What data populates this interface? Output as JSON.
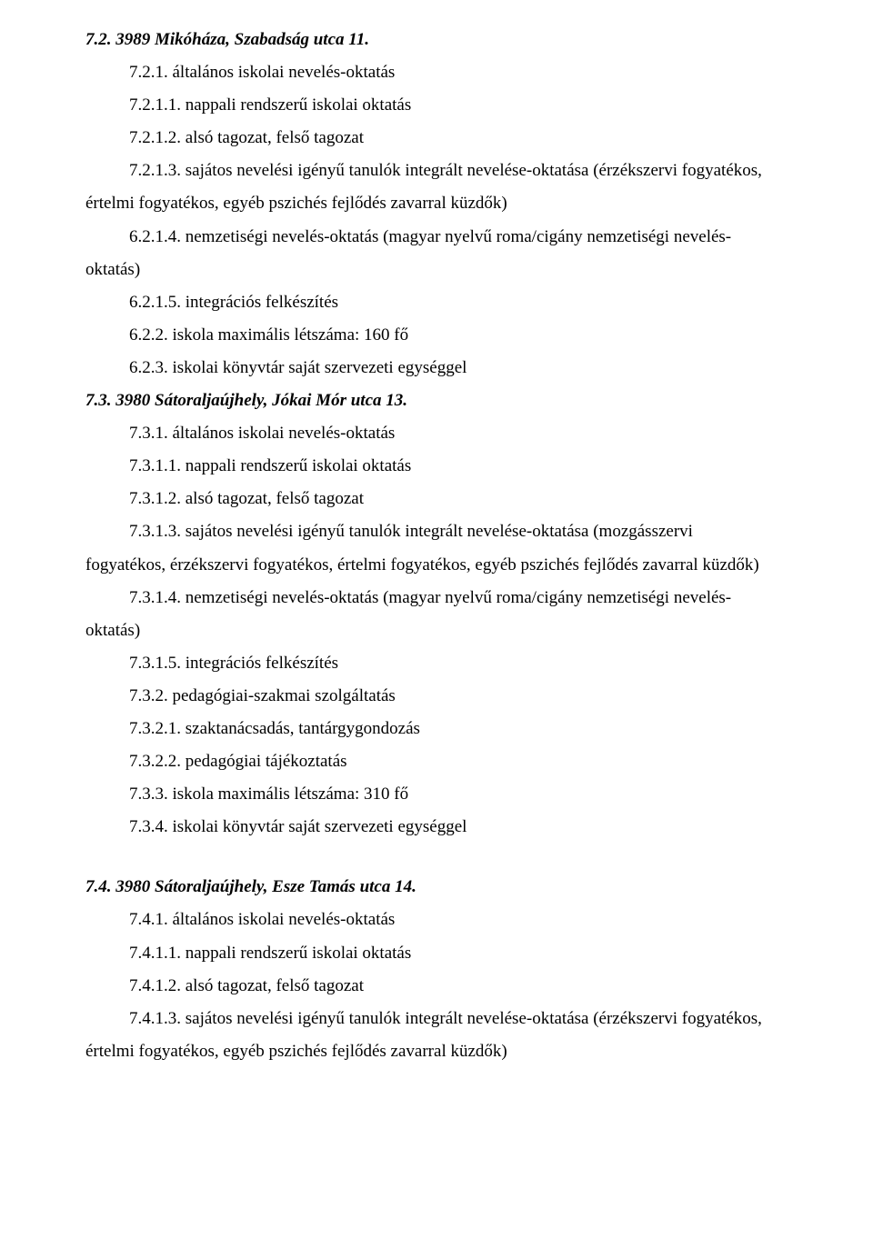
{
  "sections": {
    "s1": {
      "title": "7.2. 3989 Mikóháza, Szabadság utca 11.",
      "l1": "7.2.1. általános iskolai nevelés-oktatás",
      "l2": "7.2.1.1. nappali rendszerű iskolai oktatás",
      "l3": "7.2.1.2. alsó tagozat, felső tagozat",
      "l4a": "7.2.1.3. sajátos nevelési igényű tanulók integrált nevelése-oktatása (érzékszervi fogyatékos,",
      "l4b": "értelmi fogyatékos, egyéb pszichés fejlődés zavarral küzdők)",
      "l5a": "6.2.1.4. nemzetiségi nevelés-oktatás (magyar nyelvű roma/cigány nemzetiségi nevelés-",
      "l5b": "oktatás)",
      "l6": "6.2.1.5. integrációs felkészítés",
      "l7": "6.2.2. iskola maximális létszáma: 160 fő",
      "l8": "6.2.3. iskolai könyvtár saját szervezeti egységgel"
    },
    "s2": {
      "title": "7.3. 3980 Sátoraljaújhely, Jókai Mór utca 13.",
      "l1": "7.3.1. általános iskolai nevelés-oktatás",
      "l2": "7.3.1.1. nappali rendszerű iskolai oktatás",
      "l3": "7.3.1.2. alsó tagozat, felső tagozat",
      "l4a": "7.3.1.3. sajátos nevelési igényű tanulók integrált nevelése-oktatása (mozgásszervi",
      "l4b": "fogyatékos, érzékszervi fogyatékos, értelmi fogyatékos, egyéb pszichés fejlődés zavarral küzdők)",
      "l5a": "7.3.1.4. nemzetiségi nevelés-oktatás (magyar nyelvű roma/cigány nemzetiségi nevelés-",
      "l5b": "oktatás)",
      "l6": "7.3.1.5. integrációs felkészítés",
      "l7": "7.3.2. pedagógiai-szakmai szolgáltatás",
      "l8": "7.3.2.1. szaktanácsadás, tantárgygondozás",
      "l9": "7.3.2.2. pedagógiai tájékoztatás",
      "l10": "7.3.3. iskola maximális létszáma: 310 fő",
      "l11": "7.3.4. iskolai könyvtár saját szervezeti egységgel"
    },
    "s3": {
      "title": "7.4. 3980 Sátoraljaújhely, Esze Tamás utca 14.",
      "l1": "7.4.1. általános iskolai nevelés-oktatás",
      "l2": "7.4.1.1. nappali rendszerű iskolai oktatás",
      "l3": "7.4.1.2. alsó tagozat, felső tagozat",
      "l4a": "7.4.1.3. sajátos nevelési igényű tanulók integrált nevelése-oktatása (érzékszervi fogyatékos,",
      "l4b": "értelmi fogyatékos, egyéb pszichés fejlődés zavarral küzdők)"
    }
  }
}
